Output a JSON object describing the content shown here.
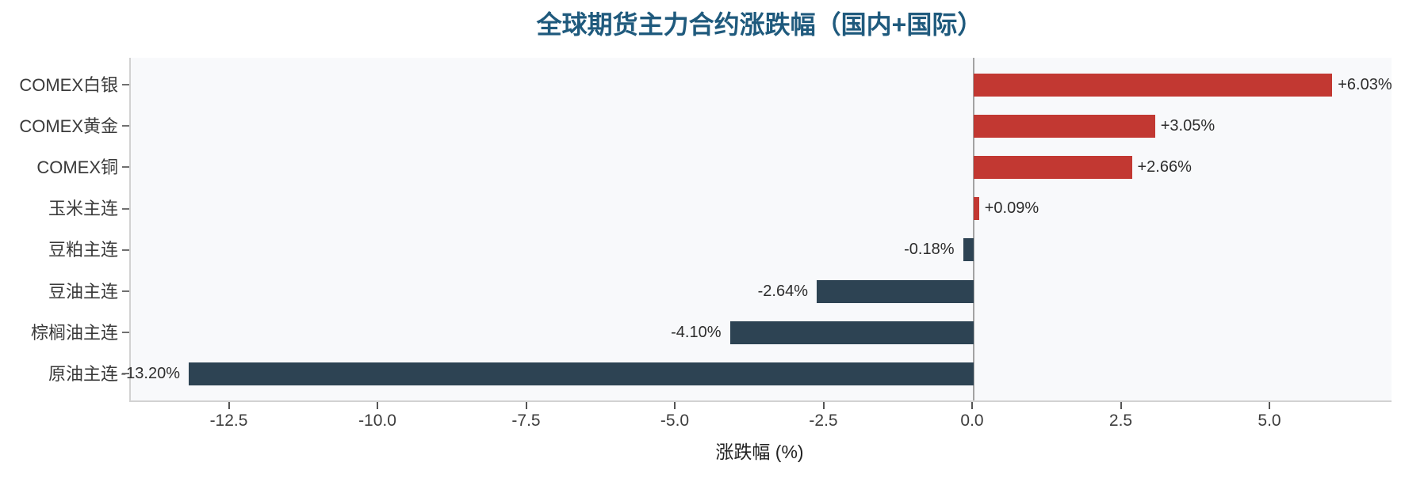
{
  "title": "全球期货主力合约涨跌幅（国内+国际）",
  "chart_data": {
    "type": "bar",
    "orientation": "horizontal",
    "title": "全球期货主力合约涨跌幅（国内+国际）",
    "categories": [
      "COMEX白银",
      "COMEX黄金",
      "COMEX铜",
      "玉米主连",
      "豆粕主连",
      "豆油主连",
      "棕榈油主连",
      "原油主连"
    ],
    "values": [
      6.03,
      3.05,
      2.66,
      0.09,
      -0.18,
      -2.64,
      -4.1,
      -13.2
    ],
    "value_labels": [
      "+6.03%",
      "+3.05%",
      "+2.66%",
      "+0.09%",
      "-0.18%",
      "-2.64%",
      "-4.10%",
      "-13.20%"
    ],
    "xlabel": "涨跌幅 (%)",
    "ylabel": "",
    "x_ticks": [
      -12.5,
      -10.0,
      -7.5,
      -5.0,
      -2.5,
      0.0,
      2.5,
      5.0
    ],
    "x_tick_labels": [
      "-12.5",
      "-10.0",
      "-7.5",
      "-5.0",
      "-2.5",
      "0.0",
      "2.5",
      "5.0"
    ],
    "xlim": [
      -14.2,
      7.0
    ],
    "grid": false,
    "legend": false,
    "zero_line": true,
    "colors": {
      "positive_bar": "#c23832",
      "negative_bar": "#2d4353",
      "title": "#1f5a7d",
      "plot_background": "#f8f9fb",
      "zero_line": "#a3a3a3",
      "axis_spine": "#d2d2d2",
      "tick_text": "#3d3d3d",
      "label_text": "#2d2d2d"
    }
  }
}
